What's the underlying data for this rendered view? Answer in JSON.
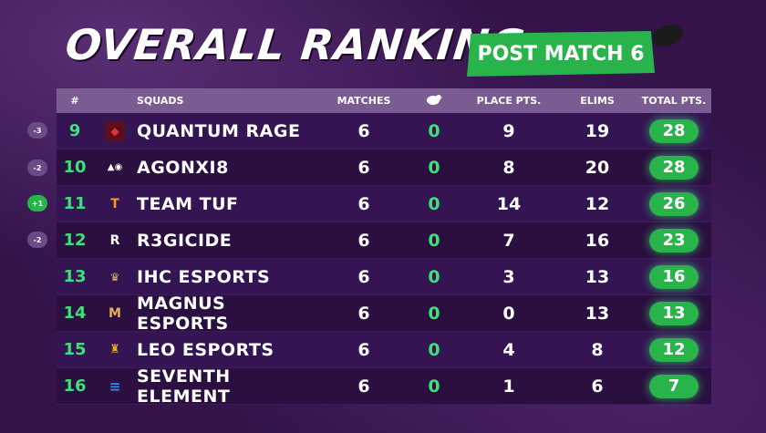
{
  "title": "OVERALL RANKING",
  "badge": "POST MATCH 6",
  "headers": {
    "rank": "#",
    "squads": "SQUADS",
    "matches": "MATCHES",
    "place": "PLACE PTS.",
    "elims": "ELIMS",
    "total": "TOTAL PTS."
  },
  "colors": {
    "accent": "#29b34b",
    "header_bar": "#7a5c92",
    "row_dark": "#2a0f40"
  },
  "rows": [
    {
      "change": "-3",
      "rank": "9",
      "logo_icon": "quantum-rage-logo-icon",
      "squad": "QUANTUM RAGE",
      "matches": "6",
      "chicken": "0",
      "place": "9",
      "elims": "19",
      "total": "28"
    },
    {
      "change": "-2",
      "rank": "10",
      "logo_icon": "agonxi8-logo-icon",
      "squad": "AGONXI8",
      "matches": "6",
      "chicken": "0",
      "place": "8",
      "elims": "20",
      "total": "28"
    },
    {
      "change": "+1",
      "rank": "11",
      "logo_icon": "team-tuf-logo-icon",
      "squad": "TEAM TUF",
      "matches": "6",
      "chicken": "0",
      "place": "14",
      "elims": "12",
      "total": "26"
    },
    {
      "change": "-2",
      "rank": "12",
      "logo_icon": "r3gicide-logo-icon",
      "squad": "R3GICIDE",
      "matches": "6",
      "chicken": "0",
      "place": "7",
      "elims": "16",
      "total": "23"
    },
    {
      "change": "",
      "rank": "13",
      "logo_icon": "ihc-esports-logo-icon",
      "squad": "IHC ESPORTS",
      "matches": "6",
      "chicken": "0",
      "place": "3",
      "elims": "13",
      "total": "16"
    },
    {
      "change": "",
      "rank": "14",
      "logo_icon": "magnus-esports-logo-icon",
      "squad": "MAGNUS ESPORTS",
      "matches": "6",
      "chicken": "0",
      "place": "0",
      "elims": "13",
      "total": "13"
    },
    {
      "change": "",
      "rank": "15",
      "logo_icon": "leo-esports-logo-icon",
      "squad": "LEO ESPORTS",
      "matches": "6",
      "chicken": "0",
      "place": "4",
      "elims": "8",
      "total": "12"
    },
    {
      "change": "",
      "rank": "16",
      "logo_icon": "seventh-element-logo-icon",
      "squad": "SEVENTH ELEMENT",
      "matches": "6",
      "chicken": "0",
      "place": "1",
      "elims": "6",
      "total": "7"
    }
  ]
}
